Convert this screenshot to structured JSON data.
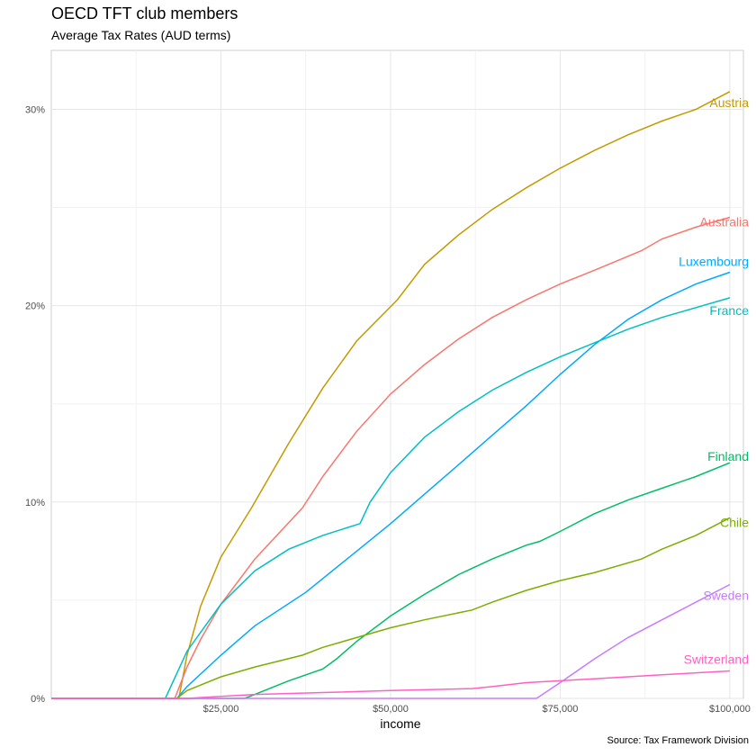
{
  "chart_data": {
    "type": "line",
    "title": "OECD TFT club members",
    "subtitle": "Average Tax Rates (AUD terms)",
    "caption": "Source: Tax Framework Division",
    "xlabel": "income",
    "ylabel": "",
    "xlim": [
      0,
      102000
    ],
    "ylim": [
      0,
      0.33
    ],
    "x_ticks": [
      25000,
      50000,
      75000,
      100000
    ],
    "x_tick_labels": [
      "$25,000",
      "$50,000",
      "$75,000",
      "$100,000"
    ],
    "y_ticks": [
      0,
      0.1,
      0.2,
      0.3
    ],
    "y_tick_labels": [
      "0%",
      "10%",
      "20%",
      "30%"
    ],
    "grid": true,
    "legend": "direct labels at line ends",
    "series": [
      {
        "name": "Austria",
        "color": "#C49A00",
        "points": [
          [
            0,
            0
          ],
          [
            18800,
            0
          ],
          [
            20000,
            0.022
          ],
          [
            22000,
            0.047
          ],
          [
            25000,
            0.072
          ],
          [
            29500,
            0.097
          ],
          [
            35000,
            0.13
          ],
          [
            40000,
            0.158
          ],
          [
            45000,
            0.182
          ],
          [
            51000,
            0.203
          ],
          [
            55000,
            0.221
          ],
          [
            60000,
            0.236
          ],
          [
            65000,
            0.249
          ],
          [
            70000,
            0.26
          ],
          [
            75000,
            0.27
          ],
          [
            80000,
            0.279
          ],
          [
            85000,
            0.287
          ],
          [
            90000,
            0.294
          ],
          [
            95000,
            0.3
          ],
          [
            100000,
            0.309
          ]
        ]
      },
      {
        "name": "Australia",
        "color": "#F8766D",
        "points": [
          [
            0,
            0
          ],
          [
            18200,
            0
          ],
          [
            20000,
            0.016
          ],
          [
            22000,
            0.03
          ],
          [
            25000,
            0.048
          ],
          [
            30000,
            0.071
          ],
          [
            37000,
            0.097
          ],
          [
            40000,
            0.113
          ],
          [
            45000,
            0.136
          ],
          [
            50000,
            0.155
          ],
          [
            55000,
            0.17
          ],
          [
            60000,
            0.183
          ],
          [
            65000,
            0.194
          ],
          [
            70000,
            0.203
          ],
          [
            75000,
            0.211
          ],
          [
            80000,
            0.218
          ],
          [
            87000,
            0.228
          ],
          [
            90000,
            0.234
          ],
          [
            95000,
            0.24
          ],
          [
            100000,
            0.245
          ]
        ]
      },
      {
        "name": "Luxembourg",
        "color": "#00A9FF",
        "points": [
          [
            0,
            0
          ],
          [
            18500,
            0
          ],
          [
            20000,
            0.006
          ],
          [
            25000,
            0.022
          ],
          [
            30000,
            0.037
          ],
          [
            37500,
            0.054
          ],
          [
            45000,
            0.075
          ],
          [
            50000,
            0.089
          ],
          [
            55000,
            0.104
          ],
          [
            60000,
            0.119
          ],
          [
            65000,
            0.134
          ],
          [
            70000,
            0.149
          ],
          [
            75000,
            0.165
          ],
          [
            80000,
            0.18
          ],
          [
            85000,
            0.193
          ],
          [
            90000,
            0.203
          ],
          [
            95000,
            0.211
          ],
          [
            100000,
            0.217
          ]
        ]
      },
      {
        "name": "France",
        "color": "#00BFC4",
        "points": [
          [
            0,
            0
          ],
          [
            16800,
            0
          ],
          [
            18000,
            0.009
          ],
          [
            20000,
            0.024
          ],
          [
            25000,
            0.048
          ],
          [
            30000,
            0.065
          ],
          [
            35000,
            0.076
          ],
          [
            40000,
            0.083
          ],
          [
            45500,
            0.089
          ],
          [
            47000,
            0.1
          ],
          [
            50000,
            0.115
          ],
          [
            55000,
            0.133
          ],
          [
            60000,
            0.146
          ],
          [
            65000,
            0.157
          ],
          [
            70000,
            0.166
          ],
          [
            75000,
            0.174
          ],
          [
            80000,
            0.181
          ],
          [
            85000,
            0.188
          ],
          [
            90000,
            0.194
          ],
          [
            95000,
            0.199
          ],
          [
            100000,
            0.204
          ]
        ]
      },
      {
        "name": "Finland",
        "color": "#00BE67",
        "points": [
          [
            0,
            0
          ],
          [
            28500,
            0
          ],
          [
            30000,
            0.002
          ],
          [
            35000,
            0.009
          ],
          [
            40000,
            0.015
          ],
          [
            42000,
            0.02
          ],
          [
            45000,
            0.029
          ],
          [
            50000,
            0.042
          ],
          [
            55000,
            0.053
          ],
          [
            60000,
            0.063
          ],
          [
            65000,
            0.071
          ],
          [
            70000,
            0.078
          ],
          [
            72000,
            0.08
          ],
          [
            75000,
            0.085
          ],
          [
            80000,
            0.094
          ],
          [
            85000,
            0.101
          ],
          [
            90000,
            0.107
          ],
          [
            95000,
            0.113
          ],
          [
            100000,
            0.12
          ]
        ]
      },
      {
        "name": "Chile",
        "color": "#7CAE00",
        "points": [
          [
            0,
            0
          ],
          [
            18500,
            0
          ],
          [
            20000,
            0.004
          ],
          [
            25000,
            0.011
          ],
          [
            30000,
            0.016
          ],
          [
            37000,
            0.022
          ],
          [
            40000,
            0.026
          ],
          [
            45000,
            0.031
          ],
          [
            50000,
            0.036
          ],
          [
            55000,
            0.04
          ],
          [
            62000,
            0.045
          ],
          [
            65000,
            0.049
          ],
          [
            70000,
            0.055
          ],
          [
            75000,
            0.06
          ],
          [
            80000,
            0.064
          ],
          [
            87000,
            0.071
          ],
          [
            90000,
            0.076
          ],
          [
            95000,
            0.083
          ],
          [
            100000,
            0.092
          ]
        ]
      },
      {
        "name": "Sweden",
        "color": "#C77CFF",
        "points": [
          [
            0,
            0
          ],
          [
            71500,
            0
          ],
          [
            75000,
            0.008
          ],
          [
            80000,
            0.02
          ],
          [
            85000,
            0.031
          ],
          [
            90000,
            0.04
          ],
          [
            95000,
            0.049
          ],
          [
            100000,
            0.058
          ]
        ]
      },
      {
        "name": "Switzerland",
        "color": "#FF61C3",
        "points": [
          [
            0,
            0
          ],
          [
            20000,
            0
          ],
          [
            25000,
            0.001
          ],
          [
            30000,
            0.002
          ],
          [
            40000,
            0.003
          ],
          [
            50000,
            0.004
          ],
          [
            62000,
            0.005
          ],
          [
            65000,
            0.006
          ],
          [
            70000,
            0.008
          ],
          [
            75000,
            0.009
          ],
          [
            80000,
            0.01
          ],
          [
            85000,
            0.011
          ],
          [
            90000,
            0.012
          ],
          [
            95000,
            0.013
          ],
          [
            100000,
            0.014
          ]
        ]
      }
    ]
  }
}
